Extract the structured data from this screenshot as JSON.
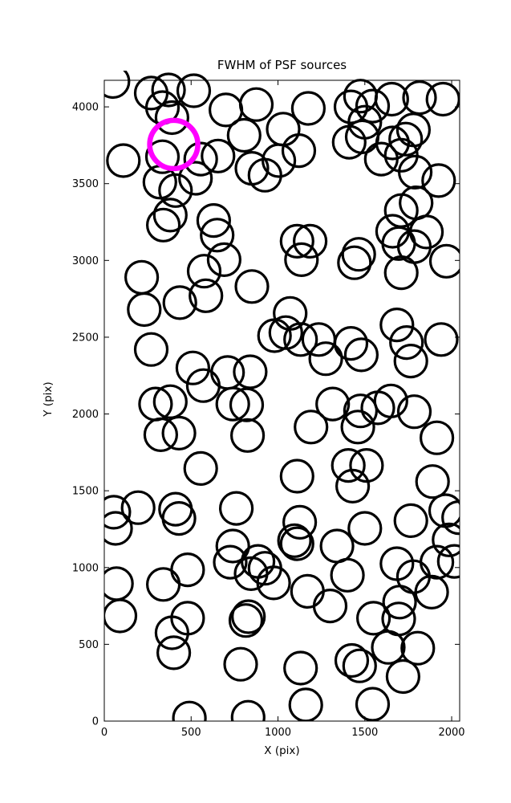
{
  "figure": {
    "background": "#ffffff"
  },
  "chart_data": {
    "type": "scatter",
    "title": "FWHM of PSF sources",
    "xlabel": "X (pix)",
    "ylabel": "Y (pix)",
    "xlim": [
      0,
      2046
    ],
    "ylim": [
      0,
      4173
    ],
    "xticks": [
      0,
      500,
      1000,
      1500,
      2000
    ],
    "yticks": [
      0,
      500,
      1000,
      1500,
      2000,
      2500,
      3000,
      3500,
      4000
    ],
    "grid": false,
    "legend": "none",
    "marker": {
      "shape": "open-circle",
      "fill": "none",
      "edge_color": "#000000",
      "radius_px": 20,
      "stroke_px": 3.2
    },
    "highlight": {
      "x": 400,
      "y": 3755,
      "edge_color": "#ff00ff",
      "radius_px": 30,
      "stroke_px": 6.5,
      "meaning": "highlighted PSF source"
    },
    "points": [
      [
        50,
        4165
      ],
      [
        270,
        4090
      ],
      [
        370,
        4110
      ],
      [
        515,
        4105
      ],
      [
        335,
        3995
      ],
      [
        390,
        3930
      ],
      [
        110,
        3650
      ],
      [
        335,
        3675
      ],
      [
        555,
        3660
      ],
      [
        655,
        3680
      ],
      [
        700,
        3980
      ],
      [
        875,
        4015
      ],
      [
        805,
        3815
      ],
      [
        1030,
        3855
      ],
      [
        850,
        3600
      ],
      [
        925,
        3555
      ],
      [
        1120,
        3715
      ],
      [
        1005,
        3650
      ],
      [
        320,
        3510
      ],
      [
        410,
        3455
      ],
      [
        525,
        3535
      ],
      [
        1175,
        3990
      ],
      [
        1475,
        4070
      ],
      [
        1420,
        4000
      ],
      [
        1545,
        4005
      ],
      [
        1655,
        4050
      ],
      [
        1500,
        3900
      ],
      [
        1410,
        3770
      ],
      [
        1485,
        3805
      ],
      [
        1595,
        3660
      ],
      [
        1710,
        3685
      ],
      [
        1735,
        3790
      ],
      [
        1780,
        3850
      ],
      [
        1660,
        3765
      ],
      [
        1815,
        4060
      ],
      [
        1950,
        4050
      ],
      [
        1925,
        3520
      ],
      [
        1790,
        3575
      ],
      [
        380,
        3295
      ],
      [
        340,
        3230
      ],
      [
        630,
        3260
      ],
      [
        650,
        3165
      ],
      [
        215,
        2890
      ],
      [
        230,
        2680
      ],
      [
        435,
        2725
      ],
      [
        575,
        2930
      ],
      [
        585,
        2770
      ],
      [
        690,
        3005
      ],
      [
        850,
        2830
      ],
      [
        1795,
        3375
      ],
      [
        1710,
        3325
      ],
      [
        1855,
        3185
      ],
      [
        1660,
        3190
      ],
      [
        1110,
        3125
      ],
      [
        1185,
        3125
      ],
      [
        1135,
        3005
      ],
      [
        1465,
        3040
      ],
      [
        1440,
        2985
      ],
      [
        1695,
        3110
      ],
      [
        1785,
        3090
      ],
      [
        1710,
        2920
      ],
      [
        1970,
        2995
      ],
      [
        1070,
        2655
      ],
      [
        980,
        2510
      ],
      [
        1045,
        2530
      ],
      [
        1130,
        2485
      ],
      [
        1235,
        2485
      ],
      [
        1275,
        2360
      ],
      [
        1420,
        2460
      ],
      [
        1480,
        2385
      ],
      [
        270,
        2420
      ],
      [
        510,
        2300
      ],
      [
        570,
        2185
      ],
      [
        710,
        2270
      ],
      [
        840,
        2275
      ],
      [
        1685,
        2580
      ],
      [
        1740,
        2465
      ],
      [
        1765,
        2345
      ],
      [
        1940,
        2485
      ],
      [
        295,
        2065
      ],
      [
        380,
        2080
      ],
      [
        325,
        1865
      ],
      [
        430,
        1875
      ],
      [
        740,
        2065
      ],
      [
        820,
        2060
      ],
      [
        825,
        1860
      ],
      [
        555,
        1645
      ],
      [
        1315,
        2065
      ],
      [
        1475,
        2020
      ],
      [
        1575,
        2040
      ],
      [
        1650,
        2085
      ],
      [
        1785,
        2015
      ],
      [
        1190,
        1915
      ],
      [
        1460,
        1915
      ],
      [
        1915,
        1845
      ],
      [
        1110,
        1595
      ],
      [
        1405,
        1665
      ],
      [
        1510,
        1665
      ],
      [
        1430,
        1530
      ],
      [
        1890,
        1560
      ],
      [
        195,
        1390
      ],
      [
        55,
        1360
      ],
      [
        65,
        1255
      ],
      [
        410,
        1380
      ],
      [
        430,
        1320
      ],
      [
        760,
        1385
      ],
      [
        740,
        1140
      ],
      [
        1965,
        1370
      ],
      [
        2040,
        1325
      ],
      [
        1985,
        1180
      ],
      [
        1765,
        1305
      ],
      [
        1125,
        1295
      ],
      [
        1095,
        1175
      ],
      [
        1110,
        1155
      ],
      [
        1340,
        1140
      ],
      [
        1500,
        1255
      ],
      [
        480,
        985
      ],
      [
        725,
        1035
      ],
      [
        845,
        960
      ],
      [
        925,
        995
      ],
      [
        975,
        900
      ],
      [
        885,
        1040
      ],
      [
        70,
        895
      ],
      [
        90,
        685
      ],
      [
        340,
        890
      ],
      [
        480,
        670
      ],
      [
        390,
        575
      ],
      [
        830,
        680
      ],
      [
        815,
        655
      ],
      [
        1170,
        845
      ],
      [
        1300,
        750
      ],
      [
        1400,
        950
      ],
      [
        1685,
        1025
      ],
      [
        1780,
        940
      ],
      [
        1885,
        840
      ],
      [
        1700,
        775
      ],
      [
        1550,
        670
      ],
      [
        1695,
        665
      ],
      [
        1915,
        1035
      ],
      [
        2015,
        1040
      ],
      [
        400,
        445
      ],
      [
        785,
        370
      ],
      [
        490,
        20
      ],
      [
        828,
        25
      ],
      [
        1130,
        345
      ],
      [
        1635,
        480
      ],
      [
        1805,
        475
      ],
      [
        1720,
        290
      ],
      [
        1425,
        395
      ],
      [
        1470,
        360
      ],
      [
        1545,
        110
      ],
      [
        1160,
        105
      ]
    ]
  }
}
